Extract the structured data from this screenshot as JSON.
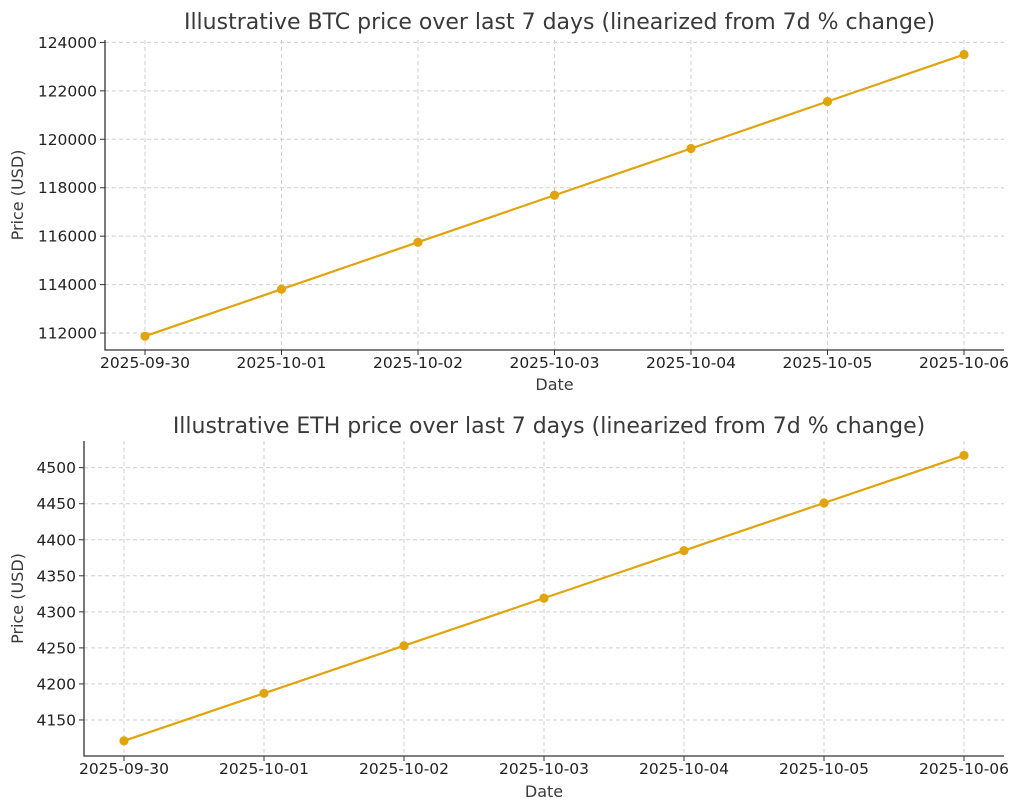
{
  "colors": {
    "series": "#e2a40c",
    "grid": "#cfcfcf",
    "axis": "#333333"
  },
  "chart_data": [
    {
      "type": "line",
      "title": "Illustrative BTC price over last 7 days (linearized from 7d % change)",
      "xlabel": "Date",
      "ylabel": "Price (USD)",
      "categories": [
        "2025-09-30",
        "2025-10-01",
        "2025-10-02",
        "2025-10-03",
        "2025-10-04",
        "2025-10-05",
        "2025-10-06"
      ],
      "yticks": [
        112000,
        114000,
        116000,
        118000,
        120000,
        122000,
        124000
      ],
      "ylim": [
        111300,
        124100
      ],
      "grid": true,
      "markers": true,
      "series": [
        {
          "values": [
            111870,
            113810,
            115750,
            117690,
            119620,
            121560,
            123500
          ]
        }
      ]
    },
    {
      "type": "line",
      "title": "Illustrative ETH price over last 7 days (linearized from 7d % change)",
      "xlabel": "Date",
      "ylabel": "Price (USD)",
      "categories": [
        "2025-09-30",
        "2025-10-01",
        "2025-10-02",
        "2025-10-03",
        "2025-10-04",
        "2025-10-05",
        "2025-10-06"
      ],
      "yticks": [
        4150,
        4200,
        4250,
        4300,
        4350,
        4400,
        4450,
        4500
      ],
      "ylim": [
        4100,
        4537
      ],
      "grid": true,
      "markers": true,
      "series": [
        {
          "values": [
            4121,
            4187,
            4253,
            4319,
            4385,
            4451,
            4517
          ]
        }
      ]
    }
  ]
}
